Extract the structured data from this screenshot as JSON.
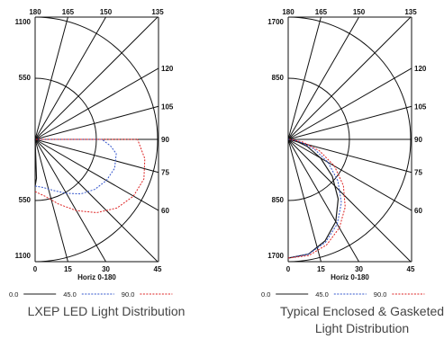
{
  "chart_data": [
    {
      "type": "polar-line",
      "title": "",
      "caption": "LXEP LED Light Distribution",
      "xlabel": "Horiz 0-180",
      "intensity_max": 1100,
      "radial_tick_labels_top": [
        "1100",
        "550"
      ],
      "radial_tick_labels_bottom": [
        "550",
        "1100"
      ],
      "angle_labels_top": [
        "180",
        "165",
        "150",
        "135"
      ],
      "angle_labels_right": [
        "120",
        "105",
        "90",
        "75",
        "60"
      ],
      "angle_labels_bottom": [
        "0",
        "15",
        "30",
        "45"
      ],
      "legend": [
        "0.0",
        "45.0",
        "90.0"
      ],
      "colors": {
        "0.0": "#1a1a1a",
        "45.0": "#3355cc",
        "90.0": "#dd2222"
      },
      "series": [
        {
          "name": "0.0",
          "angles": [
            0,
            2,
            4
          ],
          "values": [
            420,
            350,
            0
          ]
        },
        {
          "name": "45.0",
          "angles": [
            0,
            10,
            20,
            30,
            40,
            50,
            60,
            70,
            80,
            85,
            90
          ],
          "values": [
            420,
            440,
            490,
            560,
            640,
            700,
            740,
            760,
            740,
            680,
            600
          ]
        },
        {
          "name": "90.0",
          "angles": [
            0,
            10,
            20,
            30,
            40,
            50,
            60,
            70,
            80,
            90
          ],
          "values": [
            470,
            520,
            620,
            740,
            860,
            960,
            1020,
            1040,
            1000,
            920
          ]
        }
      ]
    },
    {
      "type": "polar-line",
      "title": "",
      "caption": "Typical Enclosed & Gasketed Light Distribution",
      "caption_lines": [
        "Typical Enclosed & Gasketed",
        "Light Distribution"
      ],
      "xlabel": "Horiz 0-180",
      "intensity_max": 1700,
      "radial_tick_labels_top": [
        "1700",
        "850"
      ],
      "radial_tick_labels_bottom": [
        "850",
        "1700"
      ],
      "angle_labels_top": [
        "180",
        "165",
        "150",
        "135"
      ],
      "angle_labels_right": [
        "120",
        "105",
        "90",
        "75",
        "60"
      ],
      "angle_labels_bottom": [
        "0",
        "15",
        "30",
        "45"
      ],
      "legend": [
        "0.0",
        "45.0",
        "90.0"
      ],
      "colors": {
        "0.0": "#1a1a1a",
        "45.0": "#3355cc",
        "90.0": "#dd2222"
      },
      "series": [
        {
          "name": "0.0",
          "angles": [
            0,
            10,
            20,
            30,
            40,
            50,
            60,
            70,
            80,
            90
          ],
          "values": [
            1650,
            1620,
            1500,
            1320,
            1080,
            800,
            520,
            280,
            100,
            0
          ]
        },
        {
          "name": "45.0",
          "angles": [
            0,
            10,
            20,
            30,
            40,
            50,
            60,
            70,
            80,
            90
          ],
          "values": [
            1650,
            1620,
            1520,
            1360,
            1150,
            900,
            640,
            380,
            150,
            20
          ]
        },
        {
          "name": "90.0",
          "angles": [
            0,
            10,
            20,
            30,
            40,
            50,
            60,
            70,
            80,
            90
          ],
          "values": [
            1650,
            1640,
            1560,
            1420,
            1230,
            1000,
            740,
            460,
            200,
            30
          ]
        }
      ]
    }
  ]
}
